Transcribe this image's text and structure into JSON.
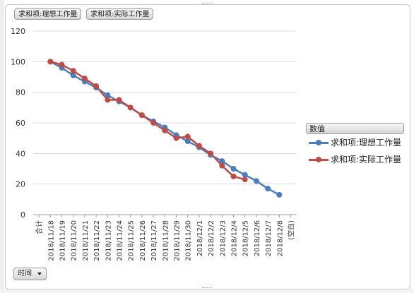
{
  "field_buttons": [
    "求和项:理想工作量",
    "求和项:实际工作量"
  ],
  "axis_field_button": "时间",
  "legend": {
    "title": "数值",
    "items": [
      {
        "label": "求和项:理想工作量",
        "color": "#4a7ebb"
      },
      {
        "label": "求和项:实际工作量",
        "color": "#be4b48"
      }
    ]
  },
  "chart_data": {
    "type": "line",
    "categories": [
      "合计",
      "2018/11/18",
      "2018/11/19",
      "2018/11/20",
      "2018/11/21",
      "2018/11/22",
      "2018/11/23",
      "2018/11/24",
      "2018/11/25",
      "2018/11/26",
      "2018/11/27",
      "2018/11/28",
      "2018/11/29",
      "2018/11/30",
      "2018/12/1",
      "2018/12/2",
      "2018/12/3",
      "2018/12/4",
      "2018/12/5",
      "2018/12/6",
      "2018/12/7",
      "2018/12/8",
      "(空白)"
    ],
    "ylim": [
      0,
      120
    ],
    "yticks": [
      0,
      20,
      40,
      60,
      80,
      100,
      120
    ],
    "grid": true,
    "legend_position": "right",
    "series": [
      {
        "name": "求和项:理想工作量",
        "color": "#4a7ebb",
        "values": [
          null,
          100,
          96,
          91,
          87,
          83,
          78,
          74,
          70,
          65,
          61,
          57,
          52,
          48,
          44,
          39,
          35,
          30,
          26,
          22,
          17,
          13,
          null
        ]
      },
      {
        "name": "求和项:实际工作量",
        "color": "#be4b48",
        "values": [
          null,
          100,
          98,
          94,
          89,
          84,
          75,
          75,
          70,
          65,
          60,
          55,
          50,
          51,
          45,
          40,
          32,
          25,
          23,
          null,
          null,
          null,
          null
        ]
      }
    ]
  }
}
